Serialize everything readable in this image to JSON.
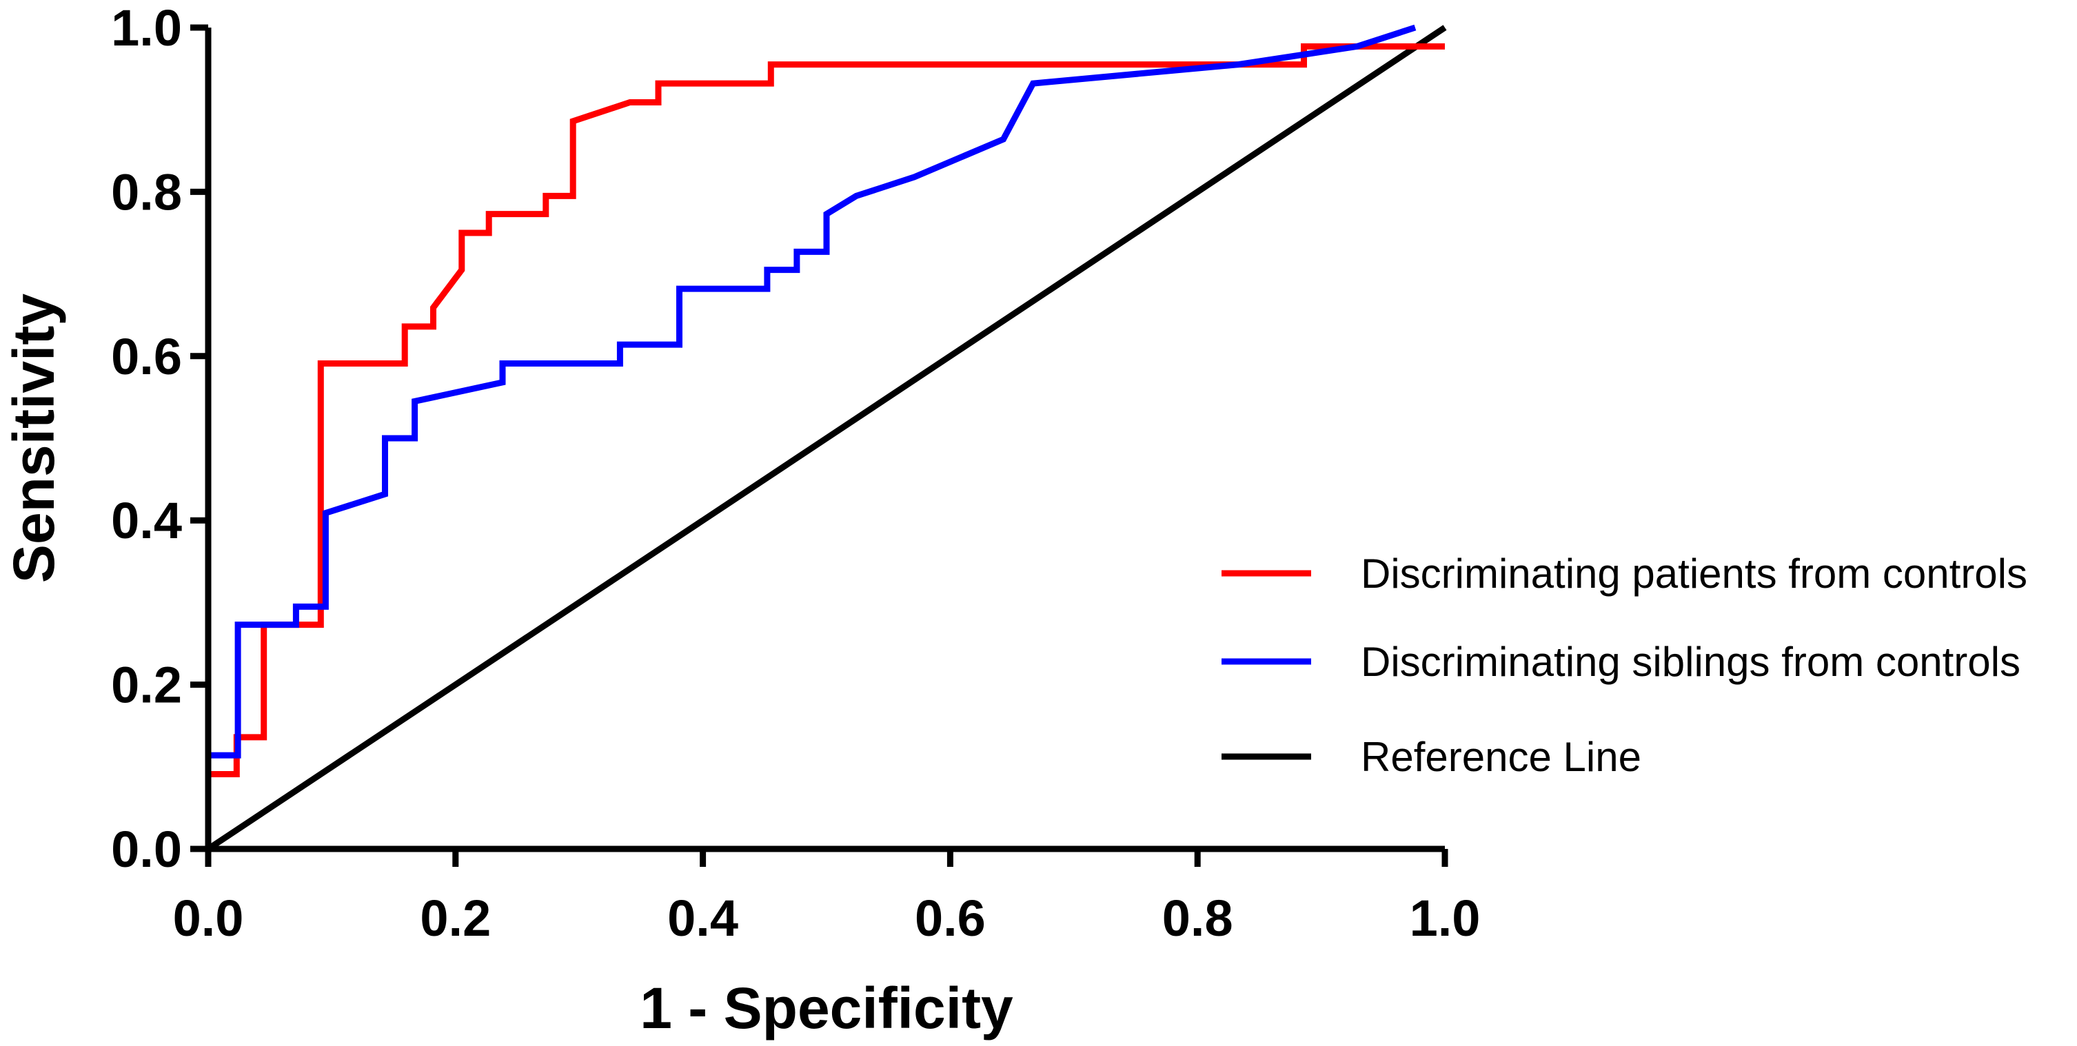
{
  "chart_data": {
    "type": "line",
    "title": "",
    "xlabel": "1 - Specificity",
    "ylabel": "Sensitivity",
    "xlim": [
      0,
      1
    ],
    "ylim": [
      0,
      1
    ],
    "xticks": [
      "0.0",
      "0.2",
      "0.4",
      "0.6",
      "0.8",
      "1.0"
    ],
    "yticks": [
      "0.0",
      "0.2",
      "0.4",
      "0.6",
      "0.8",
      "1.0"
    ],
    "legend_position": "right",
    "grid": false,
    "series": [
      {
        "name": "Discriminating patients from controls",
        "color": "#ff0000",
        "x": [
          0,
          0,
          0.023,
          0.023,
          0.045,
          0.045,
          0.091,
          0.091,
          0.159,
          0.159,
          0.182,
          0.182,
          0.205,
          0.205,
          0.227,
          0.227,
          0.273,
          0.273,
          0.295,
          0.295,
          0.341,
          0.364,
          0.364,
          0.455,
          0.455,
          0.886,
          0.886,
          1.0
        ],
        "y": [
          0,
          0.091,
          0.091,
          0.136,
          0.136,
          0.273,
          0.273,
          0.591,
          0.591,
          0.636,
          0.636,
          0.659,
          0.705,
          0.75,
          0.75,
          0.773,
          0.773,
          0.795,
          0.795,
          0.886,
          0.909,
          0.909,
          0.932,
          0.932,
          0.955,
          0.955,
          0.977,
          0.977
        ]
      },
      {
        "name": "Discriminating siblings from controls",
        "color": "#0000ff",
        "x": [
          0,
          0,
          0.024,
          0.024,
          0.071,
          0.071,
          0.095,
          0.095,
          0.143,
          0.143,
          0.167,
          0.167,
          0.238,
          0.238,
          0.333,
          0.333,
          0.381,
          0.381,
          0.452,
          0.452,
          0.476,
          0.476,
          0.5,
          0.5,
          0.524,
          0.524,
          0.571,
          0.571,
          0.643,
          0.643,
          0.667,
          0.667,
          0.833,
          0.833,
          0.929,
          0.929,
          0.976
        ],
        "y": [
          0,
          0.114,
          0.114,
          0.273,
          0.273,
          0.295,
          0.295,
          0.409,
          0.432,
          0.5,
          0.5,
          0.545,
          0.568,
          0.591,
          0.591,
          0.614,
          0.614,
          0.682,
          0.682,
          0.705,
          0.705,
          0.727,
          0.727,
          0.773,
          0.795,
          0.795,
          0.818,
          0.818,
          0.864,
          0.864,
          0.932,
          0.932,
          0.955,
          0.955,
          0.977,
          0.977,
          1.0
        ]
      },
      {
        "name": "Reference Line",
        "color": "#000000",
        "x": [
          0,
          1
        ],
        "y": [
          0,
          1
        ]
      }
    ]
  }
}
